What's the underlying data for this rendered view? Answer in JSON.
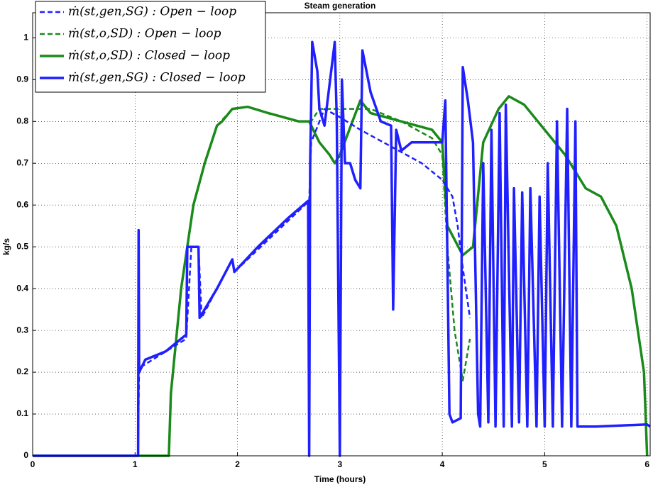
{
  "chart_data": {
    "type": "line",
    "title": "Steam generation",
    "xlabel": "Time (hours)",
    "ylabel": "kg/s",
    "xlim": [
      0,
      6.03
    ],
    "ylim": [
      0,
      1.06
    ],
    "xticks": [
      0,
      1,
      2,
      3,
      4,
      5,
      6
    ],
    "yticks": [
      0,
      0.1,
      0.2,
      0.3,
      0.4,
      0.5,
      0.6,
      0.7,
      0.8,
      0.9,
      1
    ],
    "grid": true,
    "legend": "upper left",
    "series": [
      {
        "name": "ṁ(st,gen,SG) : Open − loop",
        "color": "#1f1fff",
        "style": "dashed",
        "x": [
          0,
          1.03,
          1.04,
          1.5,
          1.55,
          1.62,
          1.65,
          1.95,
          1.97,
          2.7,
          2.72,
          2.85,
          3.0,
          3.2,
          3.5,
          3.8,
          4.0,
          4.1,
          4.15,
          4.2,
          4.27
        ],
        "values": [
          0,
          0,
          0.21,
          0.28,
          0.5,
          0.5,
          0.33,
          0.47,
          0.44,
          0.61,
          0.75,
          0.83,
          0.81,
          0.78,
          0.74,
          0.7,
          0.66,
          0.62,
          0.55,
          0.45,
          0.33
        ]
      },
      {
        "name": "ṁ(st,o,SD) : Open − loop",
        "color": "#1a8a1a",
        "style": "dashed",
        "x": [
          1.33,
          1.35,
          1.45,
          1.57,
          1.68,
          1.8,
          1.95,
          2.1,
          2.3,
          2.6,
          2.72,
          2.8,
          3.0,
          3.3,
          3.6,
          3.9,
          4.0,
          4.05,
          4.12,
          4.2,
          4.27
        ],
        "values": [
          0,
          0.15,
          0.4,
          0.6,
          0.7,
          0.79,
          0.83,
          0.835,
          0.82,
          0.8,
          0.8,
          0.83,
          0.83,
          0.83,
          0.8,
          0.76,
          0.72,
          0.5,
          0.3,
          0.18,
          0.28
        ]
      },
      {
        "name": "ṁ(st,o,SD) : Closed − loop",
        "color": "#1a8a1a",
        "style": "solid",
        "x": [
          0,
          1.33,
          1.35,
          1.45,
          1.57,
          1.68,
          1.8,
          1.85,
          1.95,
          2.1,
          2.3,
          2.6,
          2.7,
          2.8,
          2.9,
          2.95,
          3.0,
          3.2,
          3.3,
          3.6,
          3.9,
          4.0,
          4.05,
          4.2,
          4.3,
          4.4,
          4.55,
          4.65,
          4.8,
          5.0,
          5.2,
          5.4,
          5.55,
          5.7,
          5.85,
          5.97,
          6.0
        ],
        "values": [
          0,
          0,
          0.15,
          0.4,
          0.6,
          0.7,
          0.79,
          0.8,
          0.83,
          0.835,
          0.82,
          0.8,
          0.8,
          0.75,
          0.72,
          0.7,
          0.72,
          0.85,
          0.82,
          0.8,
          0.78,
          0.75,
          0.55,
          0.48,
          0.5,
          0.75,
          0.83,
          0.86,
          0.84,
          0.78,
          0.72,
          0.64,
          0.62,
          0.55,
          0.4,
          0.2,
          0
        ]
      },
      {
        "name": "ṁ(st,gen,SG) : Closed − loop",
        "color": "#1f1fff",
        "style": "solid",
        "x": [
          0,
          1.03,
          1.035,
          1.04,
          1.1,
          1.3,
          1.5,
          1.51,
          1.62,
          1.63,
          1.8,
          1.95,
          1.97,
          2.2,
          2.5,
          2.69,
          2.7,
          2.71,
          2.73,
          2.78,
          2.8,
          2.85,
          2.95,
          2.97,
          3.0,
          3.02,
          3.05,
          3.1,
          3.15,
          3.2,
          3.22,
          3.3,
          3.4,
          3.5,
          3.52,
          3.55,
          3.6,
          3.7,
          3.9,
          4.0,
          4.03,
          4.07,
          4.1,
          4.18,
          4.2,
          4.25,
          4.3,
          4.35,
          4.37,
          4.4,
          4.45,
          4.48,
          4.52,
          4.56,
          4.6,
          4.62,
          4.68,
          4.7,
          4.75,
          4.78,
          4.83,
          4.86,
          4.92,
          4.95,
          5.0,
          5.03,
          5.08,
          5.12,
          5.17,
          5.22,
          5.26,
          5.3,
          5.32,
          5.5,
          6.0,
          6.03
        ],
        "values": [
          0,
          0,
          0.54,
          0.2,
          0.23,
          0.25,
          0.29,
          0.5,
          0.5,
          0.33,
          0.4,
          0.47,
          0.44,
          0.5,
          0.57,
          0.61,
          0,
          0.7,
          0.99,
          0.92,
          0.83,
          0.79,
          0.99,
          0.8,
          0,
          0.9,
          0.7,
          0.7,
          0.66,
          0.64,
          0.97,
          0.87,
          0.8,
          0.79,
          0.35,
          0.78,
          0.73,
          0.75,
          0.75,
          0.75,
          0.85,
          0.1,
          0.08,
          0.09,
          0.93,
          0.85,
          0.75,
          0.1,
          0.07,
          0.7,
          0.08,
          0.78,
          0.07,
          0.82,
          0.07,
          0.84,
          0.07,
          0.64,
          0.08,
          0.63,
          0.07,
          0.64,
          0.07,
          0.62,
          0.07,
          0.7,
          0.07,
          0.8,
          0.07,
          0.83,
          0.07,
          0.8,
          0.07,
          0.07,
          0.075,
          0.07
        ]
      }
    ]
  }
}
